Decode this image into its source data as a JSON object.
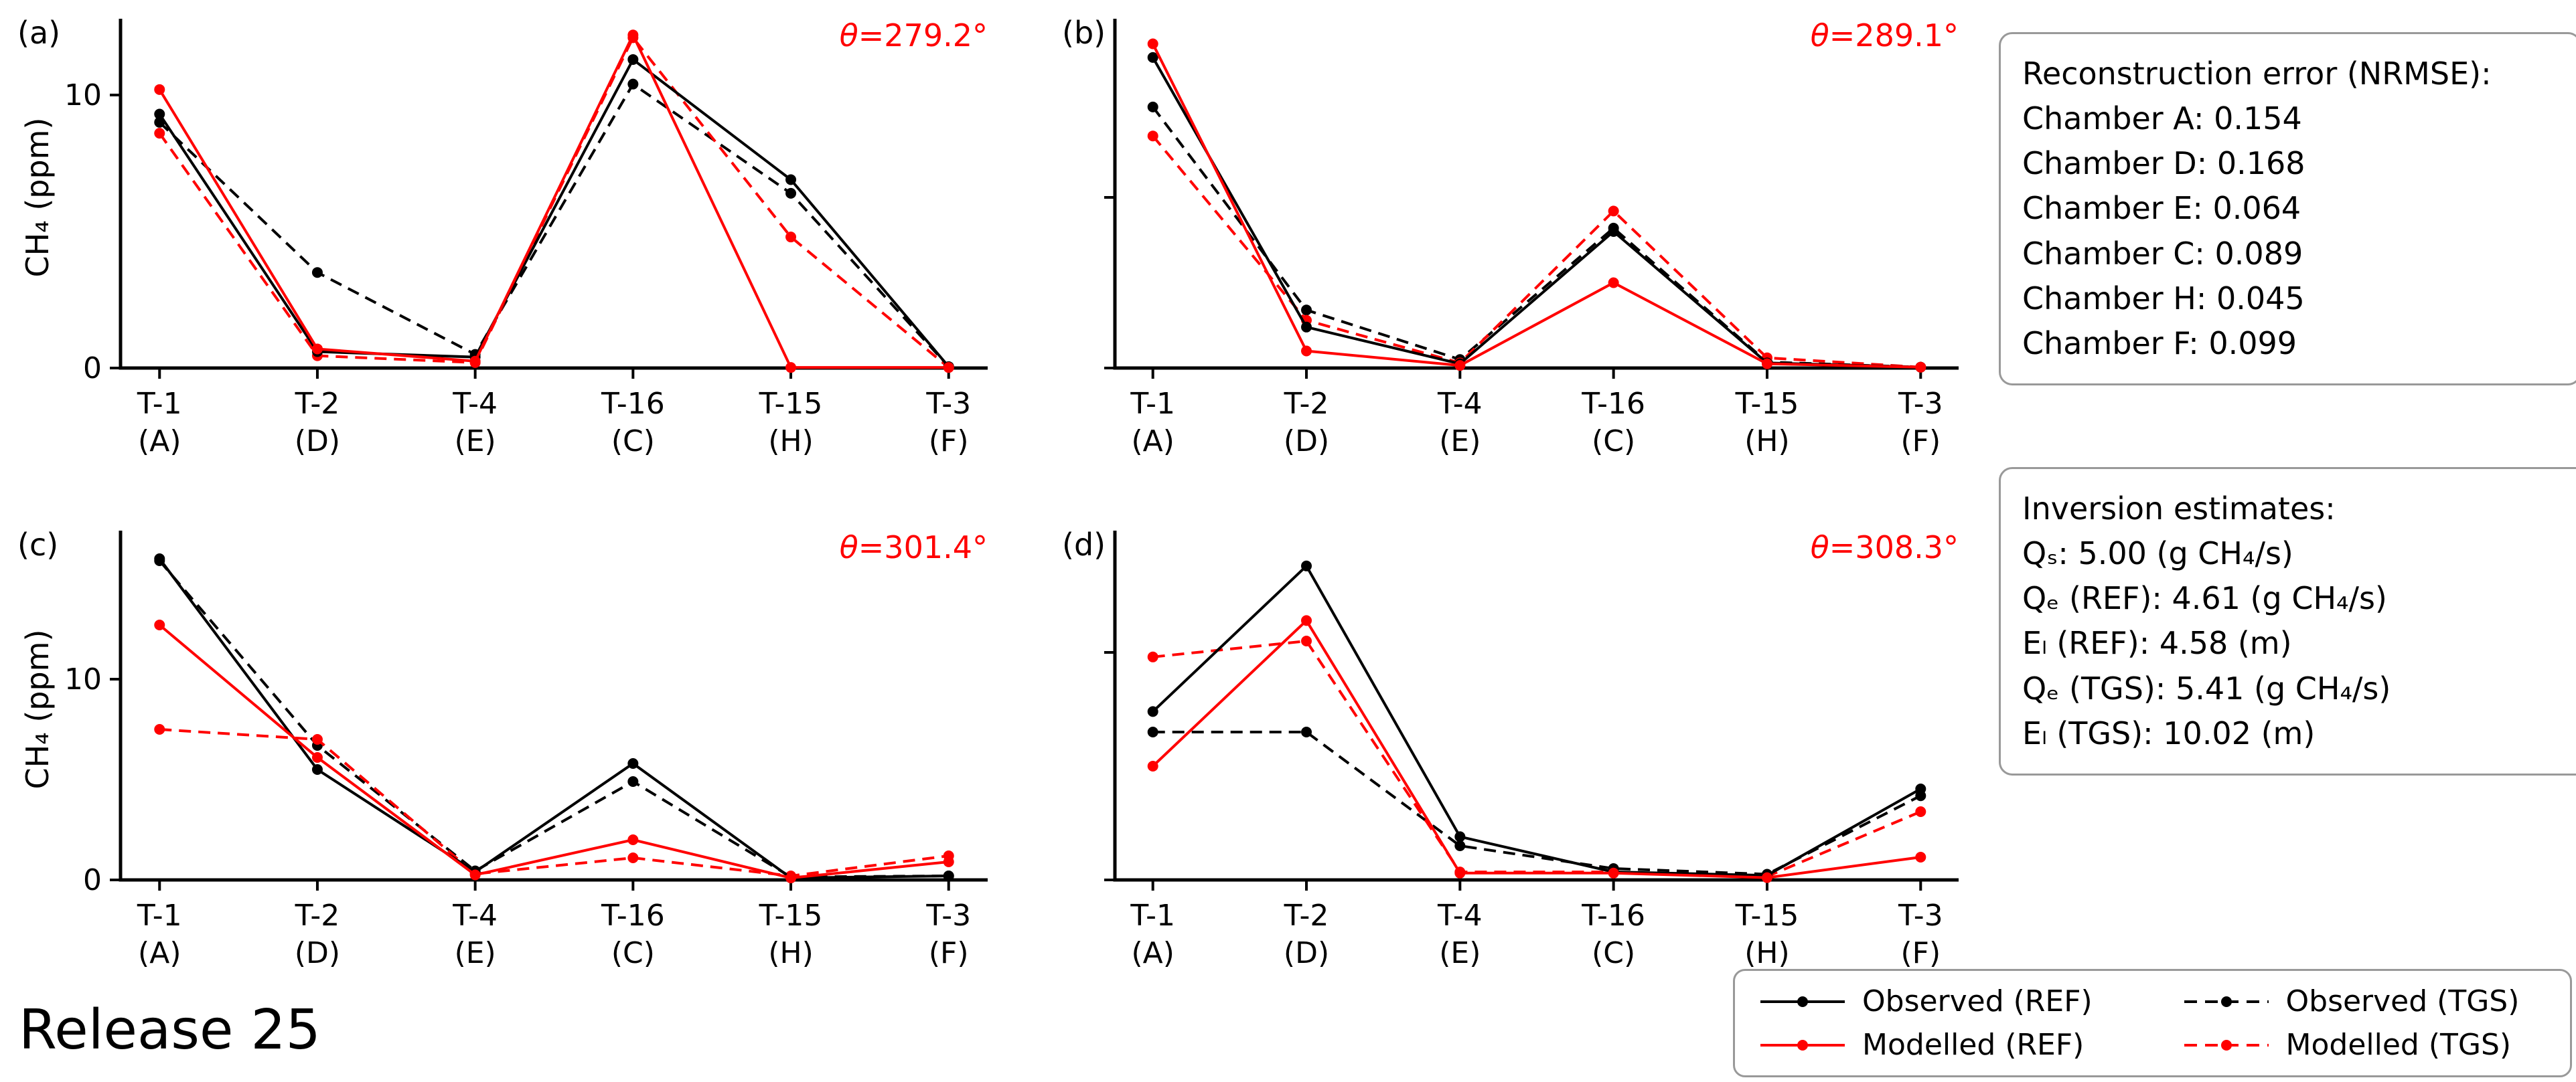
{
  "release_label": "Release 25",
  "colors": {
    "observed": "#000000",
    "modelled": "#ff0000"
  },
  "chart_data": [
    {
      "type": "line",
      "panel_label": "(a)",
      "theta_label": "θ=279.2°",
      "ylabel": "CH₄ (ppm)",
      "ylim": [
        0,
        12.5
      ],
      "yticks": [
        0,
        10
      ],
      "ytick_labels": [
        "0",
        "10"
      ],
      "show_ytick_labels": true,
      "categories": [
        "T-1",
        "T-2",
        "T-4",
        "T-16",
        "T-15",
        "T-3"
      ],
      "categories_sub": [
        "(A)",
        "(D)",
        "(E)",
        "(C)",
        "(H)",
        "(F)"
      ],
      "series": [
        {
          "name": "Observed (REF)",
          "color": "#000000",
          "dash": false,
          "values": [
            9.3,
            0.6,
            0.4,
            11.3,
            6.9,
            0.05
          ]
        },
        {
          "name": "Modelled (REF)",
          "color": "#ff0000",
          "dash": false,
          "values": [
            10.2,
            0.7,
            0.25,
            12.2,
            0.02,
            0.02
          ]
        },
        {
          "name": "Observed (TGS)",
          "color": "#000000",
          "dash": true,
          "values": [
            9.0,
            3.5,
            0.5,
            10.4,
            6.4,
            0.05
          ]
        },
        {
          "name": "Modelled (TGS)",
          "color": "#ff0000",
          "dash": true,
          "values": [
            8.6,
            0.45,
            0.2,
            12.1,
            4.8,
            0.02
          ]
        }
      ]
    },
    {
      "type": "line",
      "panel_label": "(b)",
      "theta_label": "θ=289.1°",
      "ylabel": "",
      "ylim": [
        0,
        20
      ],
      "yticks": [
        0,
        10
      ],
      "ytick_labels": [
        "0",
        "10"
      ],
      "show_ytick_labels": false,
      "categories": [
        "T-1",
        "T-2",
        "T-4",
        "T-16",
        "T-15",
        "T-3"
      ],
      "categories_sub": [
        "(A)",
        "(D)",
        "(E)",
        "(C)",
        "(H)",
        "(F)"
      ],
      "series": [
        {
          "name": "Observed (REF)",
          "color": "#000000",
          "dash": false,
          "values": [
            18.2,
            2.4,
            0.25,
            8.0,
            0.3,
            0.05
          ]
        },
        {
          "name": "Modelled (REF)",
          "color": "#ff0000",
          "dash": false,
          "values": [
            19.0,
            1.0,
            0.15,
            5.0,
            0.25,
            0.05
          ]
        },
        {
          "name": "Observed (TGS)",
          "color": "#000000",
          "dash": true,
          "values": [
            15.3,
            3.4,
            0.5,
            8.2,
            0.35,
            0.05
          ]
        },
        {
          "name": "Modelled (TGS)",
          "color": "#ff0000",
          "dash": true,
          "values": [
            13.6,
            2.8,
            0.3,
            9.2,
            0.6,
            0.05
          ]
        }
      ]
    },
    {
      "type": "line",
      "panel_label": "(c)",
      "theta_label": "θ=301.4°",
      "ylabel": "CH₄ (ppm)",
      "ylim": [
        0,
        17
      ],
      "yticks": [
        0,
        10
      ],
      "ytick_labels": [
        "0",
        "10"
      ],
      "show_ytick_labels": true,
      "categories": [
        "T-1",
        "T-2",
        "T-4",
        "T-16",
        "T-15",
        "T-3"
      ],
      "categories_sub": [
        "(A)",
        "(D)",
        "(E)",
        "(C)",
        "(H)",
        "(F)"
      ],
      "series": [
        {
          "name": "Observed (REF)",
          "color": "#000000",
          "dash": false,
          "values": [
            16.0,
            5.5,
            0.4,
            5.8,
            0.1,
            0.2
          ]
        },
        {
          "name": "Modelled (REF)",
          "color": "#ff0000",
          "dash": false,
          "values": [
            12.7,
            6.1,
            0.25,
            2.0,
            0.1,
            0.9
          ]
        },
        {
          "name": "Observed (TGS)",
          "color": "#000000",
          "dash": true,
          "values": [
            15.9,
            6.7,
            0.45,
            4.9,
            0.15,
            0.2
          ]
        },
        {
          "name": "Modelled (TGS)",
          "color": "#ff0000",
          "dash": true,
          "values": [
            7.5,
            7.0,
            0.3,
            1.1,
            0.2,
            1.2
          ]
        }
      ]
    },
    {
      "type": "line",
      "panel_label": "(d)",
      "theta_label": "θ=308.3°",
      "ylabel": "",
      "ylim": [
        0,
        15
      ],
      "yticks": [
        0,
        10
      ],
      "ytick_labels": [
        "0",
        "10"
      ],
      "show_ytick_labels": false,
      "categories": [
        "T-1",
        "T-2",
        "T-4",
        "T-16",
        "T-15",
        "T-3"
      ],
      "categories_sub": [
        "(A)",
        "(D)",
        "(E)",
        "(C)",
        "(H)",
        "(F)"
      ],
      "series": [
        {
          "name": "Observed (REF)",
          "color": "#000000",
          "dash": false,
          "values": [
            7.4,
            13.8,
            1.9,
            0.35,
            0.2,
            4.0
          ]
        },
        {
          "name": "Modelled (REF)",
          "color": "#ff0000",
          "dash": false,
          "values": [
            5.0,
            11.4,
            0.3,
            0.3,
            0.1,
            1.0
          ]
        },
        {
          "name": "Observed (TGS)",
          "color": "#000000",
          "dash": true,
          "values": [
            6.5,
            6.5,
            1.5,
            0.5,
            0.25,
            3.7
          ]
        },
        {
          "name": "Modelled (TGS)",
          "color": "#ff0000",
          "dash": true,
          "values": [
            9.8,
            10.5,
            0.35,
            0.35,
            0.15,
            3.0
          ]
        }
      ]
    }
  ],
  "nrmse_box": {
    "title": "Reconstruction error (NRMSE):",
    "lines": [
      "Chamber A: 0.154",
      "Chamber D: 0.168",
      "Chamber E: 0.064",
      "Chamber C: 0.089",
      "Chamber H: 0.045",
      "Chamber F: 0.099"
    ]
  },
  "inversion_box": {
    "title": "Inversion estimates:",
    "lines": [
      "Qₛ: 5.00 (g CH₄/s)",
      "Qₑ (REF): 4.61 (g CH₄/s)",
      "Eₗ (REF): 4.58 (m)",
      "Qₑ (TGS): 5.41 (g CH₄/s)",
      "Eₗ (TGS): 10.02 (m)"
    ]
  },
  "legend": {
    "items": [
      {
        "label": "Observed (REF)",
        "color": "#000000",
        "dash": false
      },
      {
        "label": "Modelled (REF)",
        "color": "#ff0000",
        "dash": false
      },
      {
        "label": "Observed (TGS)",
        "color": "#000000",
        "dash": true
      },
      {
        "label": "Modelled (TGS)",
        "color": "#ff0000",
        "dash": true
      }
    ]
  }
}
